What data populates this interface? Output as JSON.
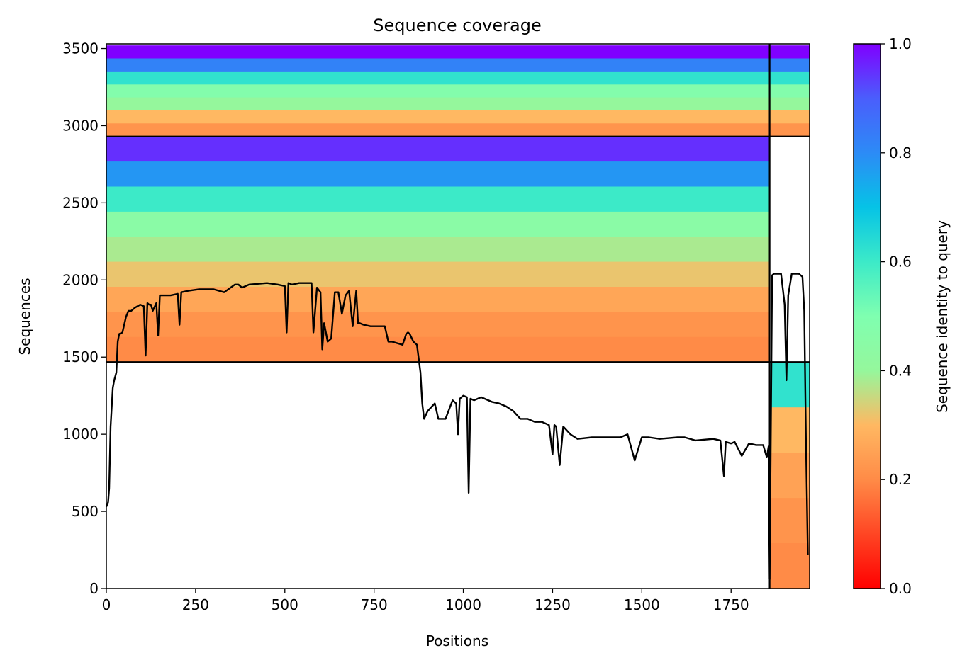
{
  "chart_data": {
    "type": "heatmap",
    "title": "Sequence coverage",
    "xlabel": "Positions",
    "ylabel": "Sequences",
    "colorbar_label": "Sequence identity to query",
    "colormap": "rainbow",
    "xlim": [
      0,
      1970
    ],
    "ylim": [
      0,
      3530
    ],
    "x_ticks": [
      0,
      250,
      500,
      750,
      1000,
      1250,
      1500,
      1750
    ],
    "y_ticks": [
      0,
      500,
      1000,
      1500,
      2000,
      2500,
      3000,
      3500
    ],
    "colorbar_ticks": [
      0.0,
      0.2,
      0.4,
      0.6,
      0.8,
      1.0
    ],
    "colorbar_tick_labels": [
      "0.0",
      "0.2",
      "0.4",
      "0.6",
      "0.8",
      "1.0"
    ],
    "chain_boundary_x": 1858,
    "block_boundaries_y": [
      1468,
      2930
    ],
    "blocks": [
      {
        "y_range": [
          2930,
          3520
        ],
        "columns": [
          [
            0,
            1858
          ],
          [
            1858,
            1970
          ]
        ],
        "identity_top_to_bottom": [
          1.0,
          0.82,
          0.62,
          0.48,
          0.4,
          0.3,
          0.22
        ]
      },
      {
        "y_range": [
          1468,
          2930
        ],
        "columns": [
          [
            0,
            1858
          ]
        ],
        "identity_top_to_bottom": [
          0.95,
          0.78,
          0.6,
          0.45,
          0.38,
          0.32,
          0.26,
          0.22,
          0.2
        ]
      },
      {
        "y_range": [
          0,
          1468
        ],
        "columns": [
          [
            1858,
            1970
          ]
        ],
        "identity_top_to_bottom": [
          0.62,
          0.3,
          0.25,
          0.22,
          0.2
        ]
      }
    ],
    "series": [
      {
        "type": "line",
        "color": "#000000",
        "x": [
          0,
          5,
          8,
          12,
          18,
          22,
          28,
          32,
          36,
          45,
          55,
          62,
          70,
          80,
          95,
          105,
          110,
          115,
          120,
          125,
          130,
          140,
          145,
          150,
          160,
          180,
          200,
          205,
          210,
          230,
          260,
          300,
          330,
          360,
          370,
          380,
          390,
          400,
          450,
          480,
          500,
          505,
          510,
          520,
          540,
          560,
          575,
          580,
          590,
          600,
          605,
          610,
          620,
          630,
          640,
          650,
          660,
          670,
          680,
          690,
          700,
          705,
          710,
          720,
          740,
          760,
          780,
          785,
          790,
          800,
          830,
          840,
          845,
          850,
          860,
          870,
          880,
          885,
          890,
          900,
          920,
          930,
          950,
          970,
          980,
          985,
          990,
          1000,
          1010,
          1015,
          1020,
          1030,
          1050,
          1080,
          1100,
          1120,
          1140,
          1160,
          1180,
          1200,
          1220,
          1240,
          1250,
          1255,
          1260,
          1270,
          1280,
          1300,
          1320,
          1360,
          1400,
          1440,
          1460,
          1480,
          1500,
          1520,
          1550,
          1600,
          1620,
          1650,
          1700,
          1720,
          1730,
          1735,
          1750,
          1760,
          1780,
          1800,
          1820,
          1840,
          1850,
          1855,
          1858,
          1865,
          1870,
          1880,
          1890,
          1900,
          1905,
          1910,
          1920,
          1930,
          1940,
          1950,
          1955,
          1960,
          1965
        ],
        "y": [
          530,
          560,
          650,
          1050,
          1300,
          1350,
          1400,
          1600,
          1650,
          1660,
          1760,
          1800,
          1800,
          1820,
          1840,
          1830,
          1510,
          1850,
          1840,
          1840,
          1800,
          1850,
          1640,
          1900,
          1900,
          1900,
          1910,
          1710,
          1920,
          1930,
          1940,
          1940,
          1920,
          1970,
          1970,
          1950,
          1960,
          1970,
          1980,
          1970,
          1960,
          1660,
          1980,
          1970,
          1980,
          1980,
          1980,
          1660,
          1950,
          1920,
          1550,
          1720,
          1600,
          1620,
          1920,
          1920,
          1780,
          1900,
          1930,
          1700,
          1930,
          1720,
          1720,
          1710,
          1700,
          1700,
          1700,
          1650,
          1600,
          1600,
          1580,
          1650,
          1660,
          1650,
          1600,
          1580,
          1400,
          1200,
          1100,
          1150,
          1200,
          1100,
          1100,
          1220,
          1200,
          1000,
          1230,
          1250,
          1240,
          620,
          1230,
          1220,
          1240,
          1210,
          1200,
          1180,
          1150,
          1100,
          1100,
          1080,
          1080,
          1060,
          870,
          1060,
          1050,
          800,
          1050,
          1000,
          970,
          980,
          980,
          980,
          1000,
          830,
          980,
          980,
          970,
          980,
          980,
          960,
          970,
          960,
          730,
          950,
          940,
          950,
          860,
          940,
          930,
          930,
          850,
          920,
          60,
          2030,
          2040,
          2040,
          2040,
          1840,
          1350,
          1900,
          2040,
          2040,
          2040,
          2020,
          1800,
          900,
          220
        ]
      }
    ]
  }
}
